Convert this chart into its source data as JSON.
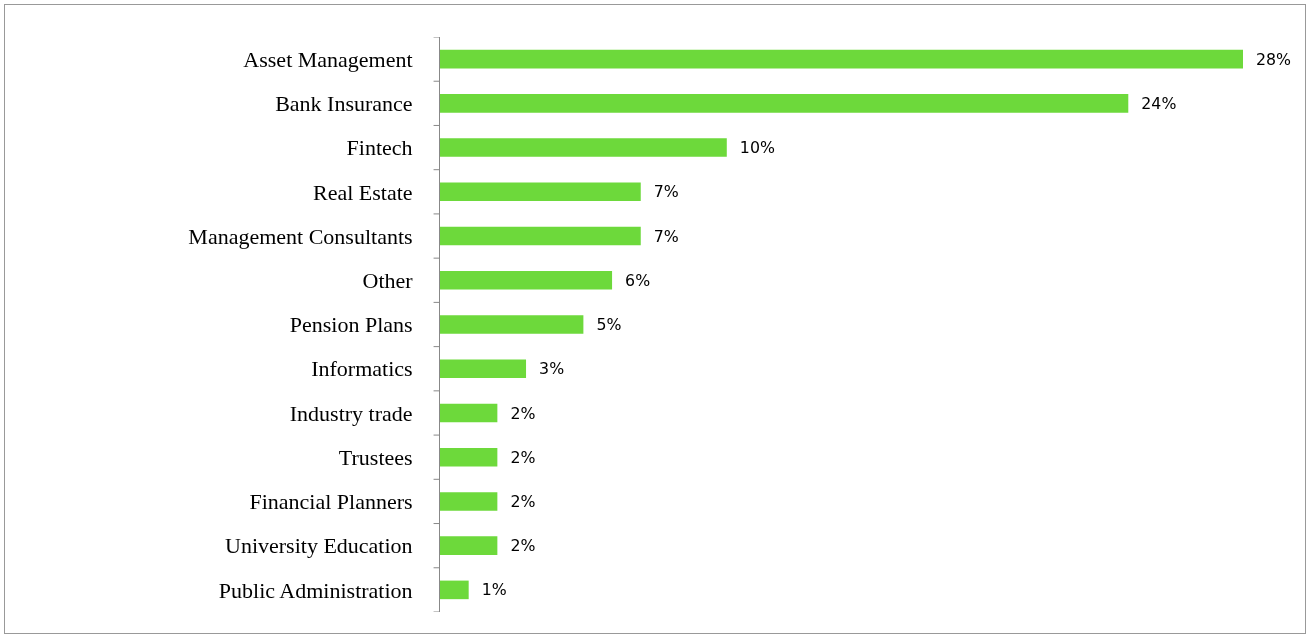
{
  "chart_data": {
    "type": "bar",
    "orientation": "horizontal",
    "categories": [
      "Asset Management",
      "Bank Insurance",
      "Fintech",
      "Real Estate",
      "Management Consultants",
      "Other",
      "Pension Plans",
      "Informatics",
      "Industry trade",
      "Trustees",
      "Financial Planners",
      "University Education",
      "Public Administration"
    ],
    "values": [
      28,
      24,
      10,
      7,
      7,
      6,
      5,
      3,
      2,
      2,
      2,
      2,
      1
    ],
    "value_labels": [
      "28%",
      "24%",
      "10%",
      "7%",
      "7%",
      "6%",
      "5%",
      "3%",
      "2%",
      "2%",
      "2%",
      "2%",
      "1%"
    ],
    "color": "#6dd93b",
    "tick_labels": "y"
  }
}
